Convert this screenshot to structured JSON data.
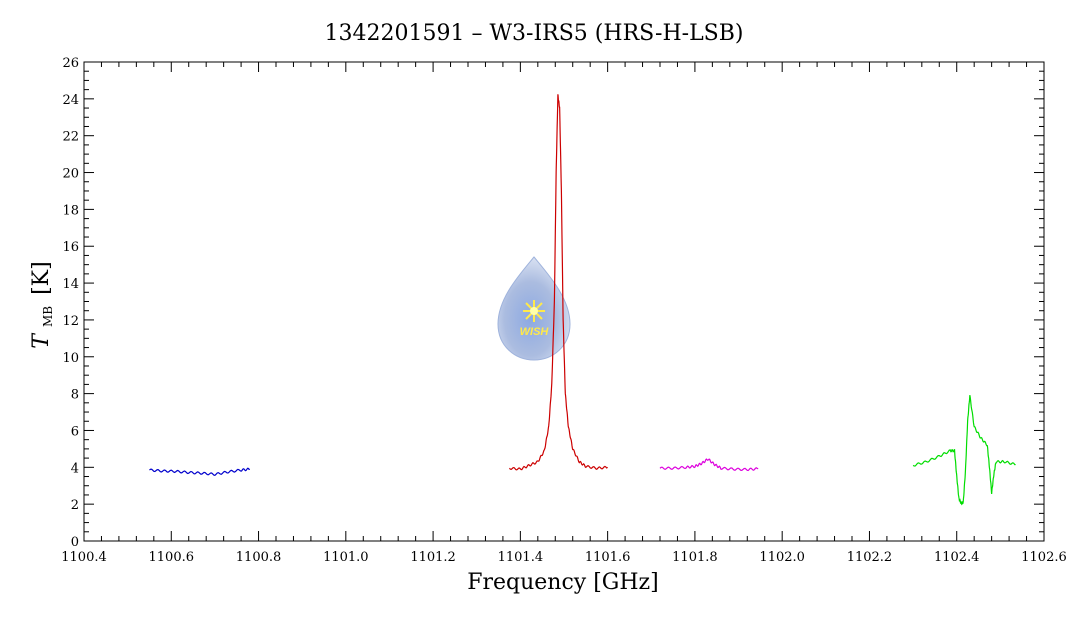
{
  "chart_data": {
    "type": "line",
    "title": "1342201591 – W3-IRS5 (HRS-H-LSB)",
    "xlabel": "Frequency [GHz]",
    "ylabel_main": "T",
    "ylabel_sub": "MB",
    "ylabel_unit": "[K]",
    "xlim": [
      1100.4,
      1102.6
    ],
    "ylim": [
      0,
      26
    ],
    "x_major_ticks": [
      1100.4,
      1100.6,
      1100.8,
      1101.0,
      1101.2,
      1101.4,
      1101.6,
      1101.8,
      1102.0,
      1102.2,
      1102.4,
      1102.6
    ],
    "x_tick_labels": [
      "1100.4",
      "1100.6",
      "1100.8",
      "1101.0",
      "1101.2",
      "1101.4",
      "1101.6",
      "1101.8",
      "1102.0",
      "1102.2",
      "1102.4",
      "1102.6"
    ],
    "y_major_ticks": [
      0,
      2,
      4,
      6,
      8,
      10,
      12,
      14,
      16,
      18,
      20,
      22,
      24,
      26
    ],
    "y_tick_labels": [
      "0",
      "2",
      "4",
      "6",
      "8",
      "10",
      "12",
      "14",
      "16",
      "18",
      "20",
      "22",
      "24",
      "26"
    ],
    "grid": false,
    "logo_text": "WISH",
    "series": [
      {
        "color": "#0000cc",
        "x": [
          1100.55,
          1100.58,
          1100.61,
          1100.64,
          1100.67,
          1100.7,
          1100.73,
          1100.76,
          1100.78
        ],
        "y": [
          3.85,
          3.8,
          3.78,
          3.72,
          3.68,
          3.62,
          3.75,
          3.85,
          3.9
        ]
      },
      {
        "color": "#cc0000",
        "x": [
          1101.375,
          1101.4,
          1101.42,
          1101.44,
          1101.455,
          1101.465,
          1101.472,
          1101.478,
          1101.482,
          1101.486,
          1101.49,
          1101.494,
          1101.498,
          1101.503,
          1101.51,
          1101.52,
          1101.535,
          1101.55,
          1101.575,
          1101.6
        ],
        "y": [
          3.95,
          3.9,
          4.1,
          4.3,
          4.9,
          6.2,
          8.5,
          13.0,
          20.0,
          24.2,
          23.5,
          19.0,
          12.0,
          8.0,
          6.2,
          5.0,
          4.3,
          4.05,
          3.95,
          4.0
        ]
      },
      {
        "color": "#dd00dd",
        "x": [
          1101.72,
          1101.75,
          1101.78,
          1101.8,
          1101.815,
          1101.83,
          1101.845,
          1101.86,
          1101.89,
          1101.92,
          1101.945
        ],
        "y": [
          3.95,
          3.95,
          4.0,
          4.05,
          4.2,
          4.45,
          4.15,
          3.95,
          3.9,
          3.88,
          3.92
        ]
      },
      {
        "color": "#00dd00",
        "x": [
          1102.3,
          1102.33,
          1102.36,
          1102.385,
          1102.395,
          1102.4,
          1102.405,
          1102.41,
          1102.415,
          1102.42,
          1102.425,
          1102.43,
          1102.44,
          1102.455,
          1102.47,
          1102.475,
          1102.48,
          1102.485,
          1102.49,
          1102.51,
          1102.535
        ],
        "y": [
          4.1,
          4.3,
          4.6,
          4.9,
          4.9,
          3.5,
          2.3,
          2.05,
          2.1,
          3.8,
          6.5,
          7.9,
          6.2,
          5.6,
          5.2,
          4.0,
          2.6,
          3.6,
          4.3,
          4.3,
          4.15
        ]
      }
    ]
  }
}
